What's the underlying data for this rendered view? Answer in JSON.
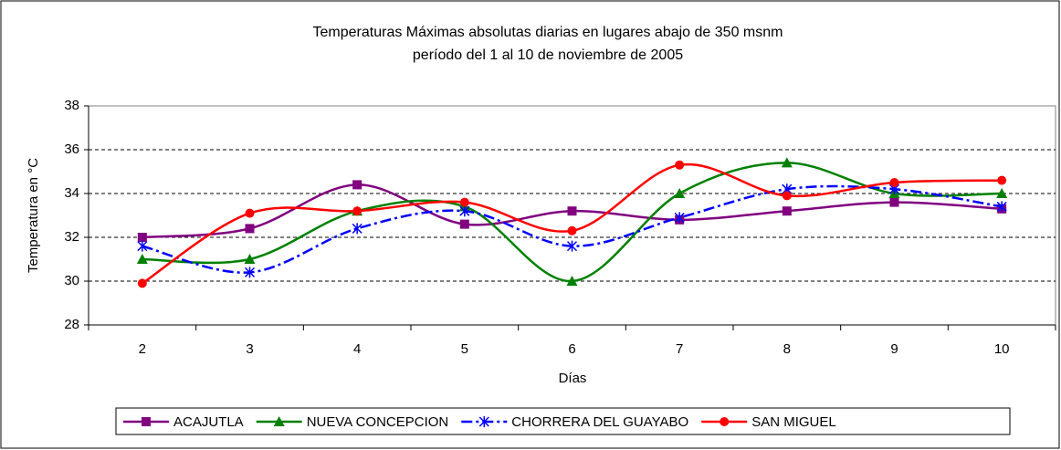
{
  "chart_data": {
    "type": "line",
    "smooth": true,
    "title": "Temperaturas Máximas absolutas diarias en lugares abajo de 350 msnm",
    "subtitle": "período del 1 al 10 de noviembre de 2005",
    "x_label": "Días",
    "y_label": "Temperatura en °C",
    "categories": [
      "2",
      "3",
      "4",
      "5",
      "6",
      "7",
      "8",
      "9",
      "10"
    ],
    "ylim": [
      28,
      38
    ],
    "yticks": [
      28,
      30,
      32,
      34,
      36,
      38
    ],
    "grid": true,
    "legend": "bottom",
    "series": [
      {
        "name": "ACAJUTLA",
        "color": "#800080",
        "marker": "square",
        "dash": "solid",
        "values": [
          32.0,
          32.4,
          34.4,
          32.6,
          33.2,
          32.8,
          33.2,
          33.6,
          33.3
        ]
      },
      {
        "name": "NUEVA CONCEPCION",
        "color": "#008000",
        "marker": "triangle",
        "dash": "solid",
        "values": [
          31.0,
          31.0,
          33.2,
          33.4,
          30.0,
          34.0,
          35.4,
          34.0,
          34.0
        ]
      },
      {
        "name": "CHORRERA DEL GUAYABO",
        "color": "#0000ff",
        "marker": "asterisk",
        "dash": "dashdot",
        "values": [
          31.6,
          30.4,
          32.4,
          33.2,
          31.6,
          32.9,
          34.2,
          34.2,
          33.4
        ]
      },
      {
        "name": "SAN MIGUEL",
        "color": "#ff0000",
        "marker": "circle",
        "dash": "solid",
        "values": [
          29.9,
          33.1,
          33.2,
          33.6,
          32.3,
          35.3,
          33.9,
          34.5,
          34.6
        ]
      }
    ]
  }
}
